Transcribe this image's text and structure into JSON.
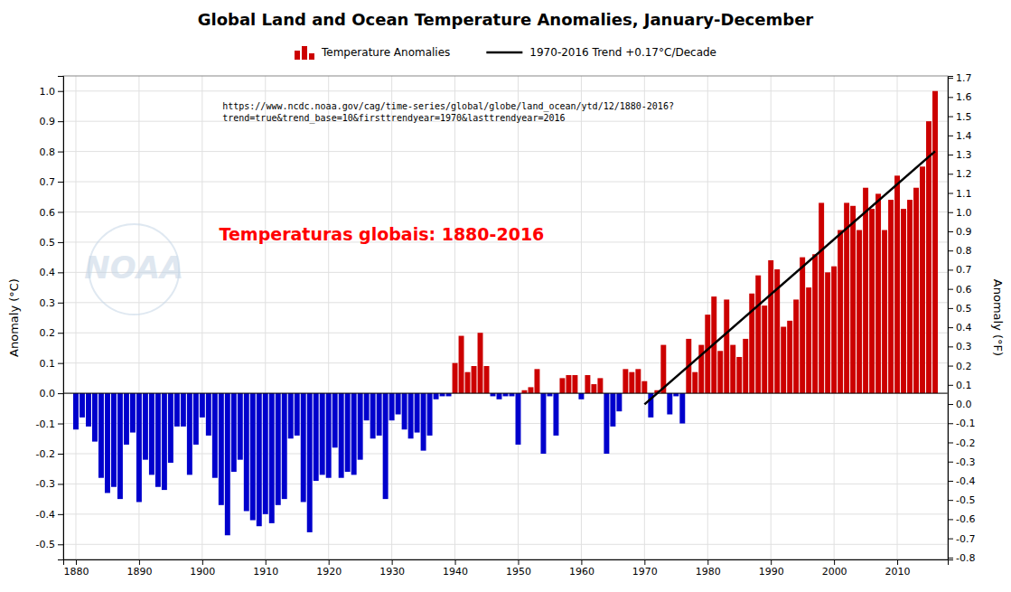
{
  "chart_data": {
    "type": "bar",
    "title": "Global Land and Ocean Temperature Anomalies, January-December",
    "y_label": "Anomaly (°C)",
    "y2_label": "Anomaly (°F)",
    "annotations": [
      {
        "text": "NOAA",
        "color": "#c5d5e5"
      },
      {
        "text": "https://www.ncdc.noaa.gov/cag/time-series/global/globe/land_ocean/ytd/12/1880-2016?\ntrend=true&trend_base=10&firsttrendyear=1970&lasttrendyear=2016",
        "color": "#000000"
      },
      {
        "text": "Temperaturas globais: 1880-2016",
        "color": "#ff0000"
      }
    ],
    "xlim": [
      1878,
      2018
    ],
    "xticks": [
      1880,
      1890,
      1900,
      1910,
      1920,
      1930,
      1940,
      1950,
      1960,
      1970,
      1980,
      1990,
      2000,
      2010
    ],
    "ylim": [
      -0.55,
      1.05
    ],
    "yticks": [
      -0.5,
      -0.4,
      -0.3,
      -0.2,
      -0.1,
      {
        "value": 0,
        "label": "0.0"
      },
      0.1,
      0.2,
      0.3,
      0.4,
      0.5,
      0.6,
      0.7,
      0.8,
      0.9,
      {
        "value": 1,
        "label": "1.0"
      }
    ],
    "y2lim": [
      -0.81,
      1.71
    ],
    "y2ticks": [
      -0.8,
      -0.7,
      -0.6,
      -0.5,
      -0.4,
      -0.3,
      -0.2,
      -0.1,
      {
        "value": 0,
        "label": "0.0"
      },
      0.1,
      0.2,
      0.3,
      0.4,
      0.5,
      0.6,
      0.7,
      0.8,
      0.9,
      {
        "value": 1,
        "label": "1.0"
      },
      1.1,
      1.2,
      1.3,
      1.4,
      1.5,
      1.6,
      1.7
    ],
    "grid": true,
    "legend": "top",
    "series": [
      {
        "name": "Temperature Anomalies",
        "type": "bar",
        "color": "#cc0000",
        "colors": [
          "#0000cc",
          "#0000cc",
          "#0000cc",
          "#0000cc",
          "#0000cc",
          "#0000cc",
          "#0000cc",
          "#0000cc",
          "#0000cc",
          "#0000cc",
          "#0000cc",
          "#0000cc",
          "#0000cc",
          "#0000cc",
          "#0000cc",
          "#0000cc",
          "#0000cc",
          "#0000cc",
          "#0000cc",
          "#0000cc",
          "#0000cc",
          "#0000cc",
          "#0000cc",
          "#0000cc",
          "#0000cc",
          "#0000cc",
          "#0000cc",
          "#0000cc",
          "#0000cc",
          "#0000cc",
          "#0000cc",
          "#0000cc",
          "#0000cc",
          "#0000cc",
          "#0000cc",
          "#0000cc",
          "#0000cc",
          "#0000cc",
          "#0000cc",
          "#0000cc",
          "#0000cc",
          "#0000cc",
          "#0000cc",
          "#0000cc",
          "#0000cc",
          "#0000cc",
          "#0000cc",
          "#0000cc",
          "#0000cc",
          "#0000cc",
          "#0000cc",
          "#0000cc",
          "#0000cc",
          "#0000cc",
          "#0000cc",
          "#0000cc",
          "#0000cc",
          "#0000cc",
          "#0000cc",
          "#0000cc",
          "#cc0000",
          "#cc0000",
          "#cc0000",
          "#cc0000",
          "#cc0000",
          "#cc0000",
          "#0000cc",
          "#0000cc",
          "#0000cc",
          "#0000cc",
          "#0000cc",
          "#cc0000",
          "#cc0000",
          "#cc0000",
          "#0000cc",
          "#0000cc",
          "#0000cc",
          "#cc0000",
          "#cc0000",
          "#cc0000",
          "#0000cc",
          "#cc0000",
          "#cc0000",
          "#cc0000",
          "#0000cc",
          "#0000cc",
          "#0000cc",
          "#cc0000",
          "#cc0000",
          "#cc0000",
          "#cc0000",
          "#0000cc",
          "#cc0000",
          "#cc0000",
          "#0000cc",
          "#0000cc",
          "#0000cc",
          "#cc0000",
          "#cc0000",
          "#cc0000",
          "#cc0000",
          "#cc0000",
          "#cc0000",
          "#cc0000",
          "#cc0000",
          "#cc0000",
          "#cc0000",
          "#cc0000",
          "#cc0000",
          "#cc0000",
          "#cc0000",
          "#cc0000",
          "#cc0000",
          "#cc0000",
          "#cc0000",
          "#cc0000",
          "#cc0000",
          "#cc0000",
          "#cc0000",
          "#cc0000",
          "#cc0000",
          "#cc0000",
          "#cc0000",
          "#cc0000",
          "#cc0000",
          "#cc0000",
          "#cc0000",
          "#cc0000",
          "#cc0000",
          "#cc0000",
          "#cc0000",
          "#cc0000",
          "#cc0000",
          "#cc0000",
          "#cc0000",
          "#cc0000",
          "#cc0000"
        ],
        "x": [
          1880,
          1881,
          1882,
          1883,
          1884,
          1885,
          1886,
          1887,
          1888,
          1889,
          1890,
          1891,
          1892,
          1893,
          1894,
          1895,
          1896,
          1897,
          1898,
          1899,
          1900,
          1901,
          1902,
          1903,
          1904,
          1905,
          1906,
          1907,
          1908,
          1909,
          1910,
          1911,
          1912,
          1913,
          1914,
          1915,
          1916,
          1917,
          1918,
          1919,
          1920,
          1921,
          1922,
          1923,
          1924,
          1925,
          1926,
          1927,
          1928,
          1929,
          1930,
          1931,
          1932,
          1933,
          1934,
          1935,
          1936,
          1937,
          1938,
          1939,
          1940,
          1941,
          1942,
          1943,
          1944,
          1945,
          1946,
          1947,
          1948,
          1949,
          1950,
          1951,
          1952,
          1953,
          1954,
          1955,
          1956,
          1957,
          1958,
          1959,
          1960,
          1961,
          1962,
          1963,
          1964,
          1965,
          1966,
          1967,
          1968,
          1969,
          1970,
          1971,
          1972,
          1973,
          1974,
          1975,
          1976,
          1977,
          1978,
          1979,
          1980,
          1981,
          1982,
          1983,
          1984,
          1985,
          1986,
          1987,
          1988,
          1989,
          1990,
          1991,
          1992,
          1993,
          1994,
          1995,
          1996,
          1997,
          1998,
          1999,
          2000,
          2001,
          2002,
          2003,
          2004,
          2005,
          2006,
          2007,
          2008,
          2009,
          2010,
          2011,
          2012,
          2013,
          2014,
          2015,
          2016
        ],
        "values": [
          -0.12,
          -0.08,
          -0.11,
          -0.16,
          -0.28,
          -0.33,
          -0.31,
          -0.35,
          -0.17,
          -0.13,
          -0.36,
          -0.22,
          -0.27,
          -0.31,
          -0.32,
          -0.23,
          -0.11,
          -0.11,
          -0.27,
          -0.17,
          -0.08,
          -0.14,
          -0.28,
          -0.37,
          -0.47,
          -0.26,
          -0.22,
          -0.39,
          -0.42,
          -0.44,
          -0.4,
          -0.43,
          -0.37,
          -0.35,
          -0.15,
          -0.14,
          -0.36,
          -0.46,
          -0.29,
          -0.27,
          -0.28,
          -0.18,
          -0.28,
          -0.26,
          -0.27,
          -0.22,
          -0.09,
          -0.15,
          -0.14,
          -0.35,
          -0.09,
          -0.07,
          -0.12,
          -0.15,
          -0.13,
          -0.19,
          -0.14,
          -0.02,
          -0.01,
          -0.01,
          0.1,
          0.19,
          0.07,
          0.09,
          0.2,
          0.09,
          -0.01,
          -0.02,
          -0.01,
          -0.01,
          -0.17,
          0.01,
          0.02,
          0.08,
          -0.2,
          -0.01,
          -0.14,
          0.05,
          0.06,
          0.06,
          -0.02,
          0.06,
          0.03,
          0.05,
          -0.2,
          -0.11,
          -0.06,
          0.08,
          0.07,
          0.08,
          0.04,
          -0.08,
          0.01,
          0.16,
          -0.07,
          -0.01,
          -0.1,
          0.18,
          0.07,
          0.16,
          0.26,
          0.32,
          0.14,
          0.31,
          0.16,
          0.12,
          0.18,
          0.33,
          0.39,
          0.29,
          0.44,
          0.41,
          0.22,
          0.24,
          0.31,
          0.45,
          0.35,
          0.46,
          0.63,
          0.4,
          0.42,
          0.54,
          0.63,
          0.62,
          0.54,
          0.68,
          0.61,
          0.66,
          0.54,
          0.64,
          0.72,
          0.61,
          0.64,
          0.68,
          0.75,
          0.9,
          1.0
        ]
      },
      {
        "name": "1970-2016 Trend +0.17°C/Decade",
        "type": "line",
        "color": "#000000",
        "x": [
          1970,
          2016
        ],
        "values": [
          -0.0368,
          0.8006
        ]
      }
    ]
  }
}
